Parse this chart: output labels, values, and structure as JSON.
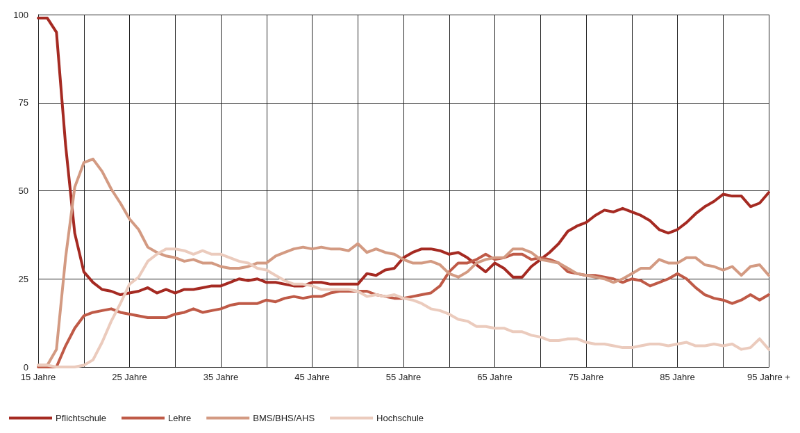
{
  "chart_data": {
    "type": "line",
    "categories": [
      "15 Jahre",
      null,
      null,
      null,
      null,
      null,
      null,
      null,
      null,
      null,
      "25 Jahre",
      null,
      null,
      null,
      null,
      null,
      null,
      null,
      null,
      null,
      "35 Jahre",
      null,
      null,
      null,
      null,
      null,
      null,
      null,
      null,
      null,
      "45 Jahre",
      null,
      null,
      null,
      null,
      null,
      null,
      null,
      null,
      null,
      "55 Jahre",
      null,
      null,
      null,
      null,
      null,
      null,
      null,
      null,
      null,
      "65 Jahre",
      null,
      null,
      null,
      null,
      null,
      null,
      null,
      null,
      null,
      "75 Jahre",
      null,
      null,
      null,
      null,
      null,
      null,
      null,
      null,
      null,
      "85 Jahre",
      null,
      null,
      null,
      null,
      null,
      null,
      null,
      null,
      null,
      "95 Jahre +"
    ],
    "series": [
      {
        "name": "Pflichtschule",
        "color": "#a52a22",
        "values": [
          99,
          99,
          95,
          63,
          38,
          27,
          24,
          22,
          21.5,
          20.5,
          21,
          21.5,
          22.5,
          21,
          22,
          21,
          22,
          22,
          22.5,
          23,
          23,
          24,
          25,
          24.5,
          25,
          24,
          24,
          23.5,
          23,
          23,
          24,
          24,
          23.5,
          23.5,
          23.5,
          23.5,
          26.5,
          26,
          27.5,
          28,
          31,
          32.5,
          33.5,
          33.5,
          33,
          32,
          32.5,
          31,
          29,
          27,
          29.5,
          28,
          25.5,
          25.5,
          28.5,
          30.5,
          32.5,
          35,
          38.5,
          40,
          41,
          43,
          44.5,
          44,
          45,
          44,
          43,
          41.5,
          39,
          38,
          39,
          41,
          43.5,
          45.5,
          47,
          49,
          48.5,
          48.5,
          45.5,
          46.5,
          49.5
        ]
      },
      {
        "name": "Lehre",
        "color": "#bf5a47",
        "values": [
          0,
          0,
          0,
          6,
          11,
          14.5,
          15.5,
          16,
          16.5,
          15.5,
          15,
          14.5,
          14,
          14,
          14,
          15,
          15.5,
          16.5,
          15.5,
          16,
          16.5,
          17.5,
          18,
          18,
          18,
          19,
          18.5,
          19.5,
          20,
          19.5,
          20,
          20,
          21,
          21.5,
          21.5,
          21.5,
          21.5,
          20.5,
          20,
          19.5,
          19.5,
          20,
          20.5,
          21,
          23,
          27,
          29.5,
          29.5,
          30.5,
          32,
          30.5,
          31,
          32,
          32,
          30.5,
          31,
          30.5,
          29.5,
          27,
          26.5,
          26,
          26,
          25.5,
          25,
          24,
          25,
          24.5,
          23,
          24,
          25,
          26.5,
          25,
          22.5,
          20.5,
          19.5,
          19,
          18,
          19,
          20.5,
          19,
          20.5
        ]
      },
      {
        "name": "BMS/BHS/AHS",
        "color": "#d39a82",
        "values": [
          0.5,
          0.5,
          5,
          31,
          51,
          58,
          59,
          55.5,
          50.5,
          46.5,
          42,
          39,
          34,
          32.5,
          31.5,
          31,
          30,
          30.5,
          29.5,
          29.5,
          28.5,
          28,
          28,
          28.5,
          29.5,
          29.5,
          31.5,
          32.5,
          33.5,
          34,
          33.5,
          34,
          33.5,
          33.5,
          33,
          35,
          32.5,
          33.5,
          32.5,
          32,
          30.5,
          29.5,
          29.5,
          30,
          29,
          26.5,
          25.5,
          27,
          29.5,
          30.5,
          31,
          31,
          33.5,
          33.5,
          32.5,
          30.5,
          30,
          29.5,
          28,
          26.5,
          26,
          25.5,
          25,
          24,
          25,
          26.5,
          28,
          28,
          30.5,
          29.5,
          29.5,
          31,
          31,
          29,
          28.5,
          27.5,
          28.5,
          26,
          28.5,
          29,
          26
        ]
      },
      {
        "name": "Hochschule",
        "color": "#ebcbbd",
        "values": [
          0.5,
          0.5,
          0,
          0,
          0,
          0.5,
          2,
          7,
          13,
          18,
          23.5,
          25.5,
          30,
          32,
          33.5,
          33.5,
          33,
          32,
          33,
          32,
          32,
          31,
          30,
          29.5,
          28,
          27.5,
          26,
          24.5,
          23.5,
          23.5,
          23,
          22,
          22,
          22,
          22,
          21.5,
          20,
          20.5,
          20,
          20.5,
          19.5,
          19,
          18,
          16.5,
          16,
          15,
          13.5,
          13,
          11.5,
          11.5,
          11,
          11,
          10,
          10,
          9,
          8.5,
          7.5,
          7.5,
          8,
          8,
          7,
          6.5,
          6.5,
          6,
          5.5,
          5.5,
          6,
          6.5,
          6.5,
          6,
          6.5,
          7,
          6,
          6,
          6.5,
          6,
          6.5,
          5,
          5.5,
          8,
          5
        ]
      }
    ],
    "ylim": [
      0,
      100
    ],
    "yticks": [
      0,
      25,
      50,
      75,
      100
    ],
    "grid": true,
    "legend": "bottom left",
    "line_style": "solid",
    "marker": "none"
  }
}
